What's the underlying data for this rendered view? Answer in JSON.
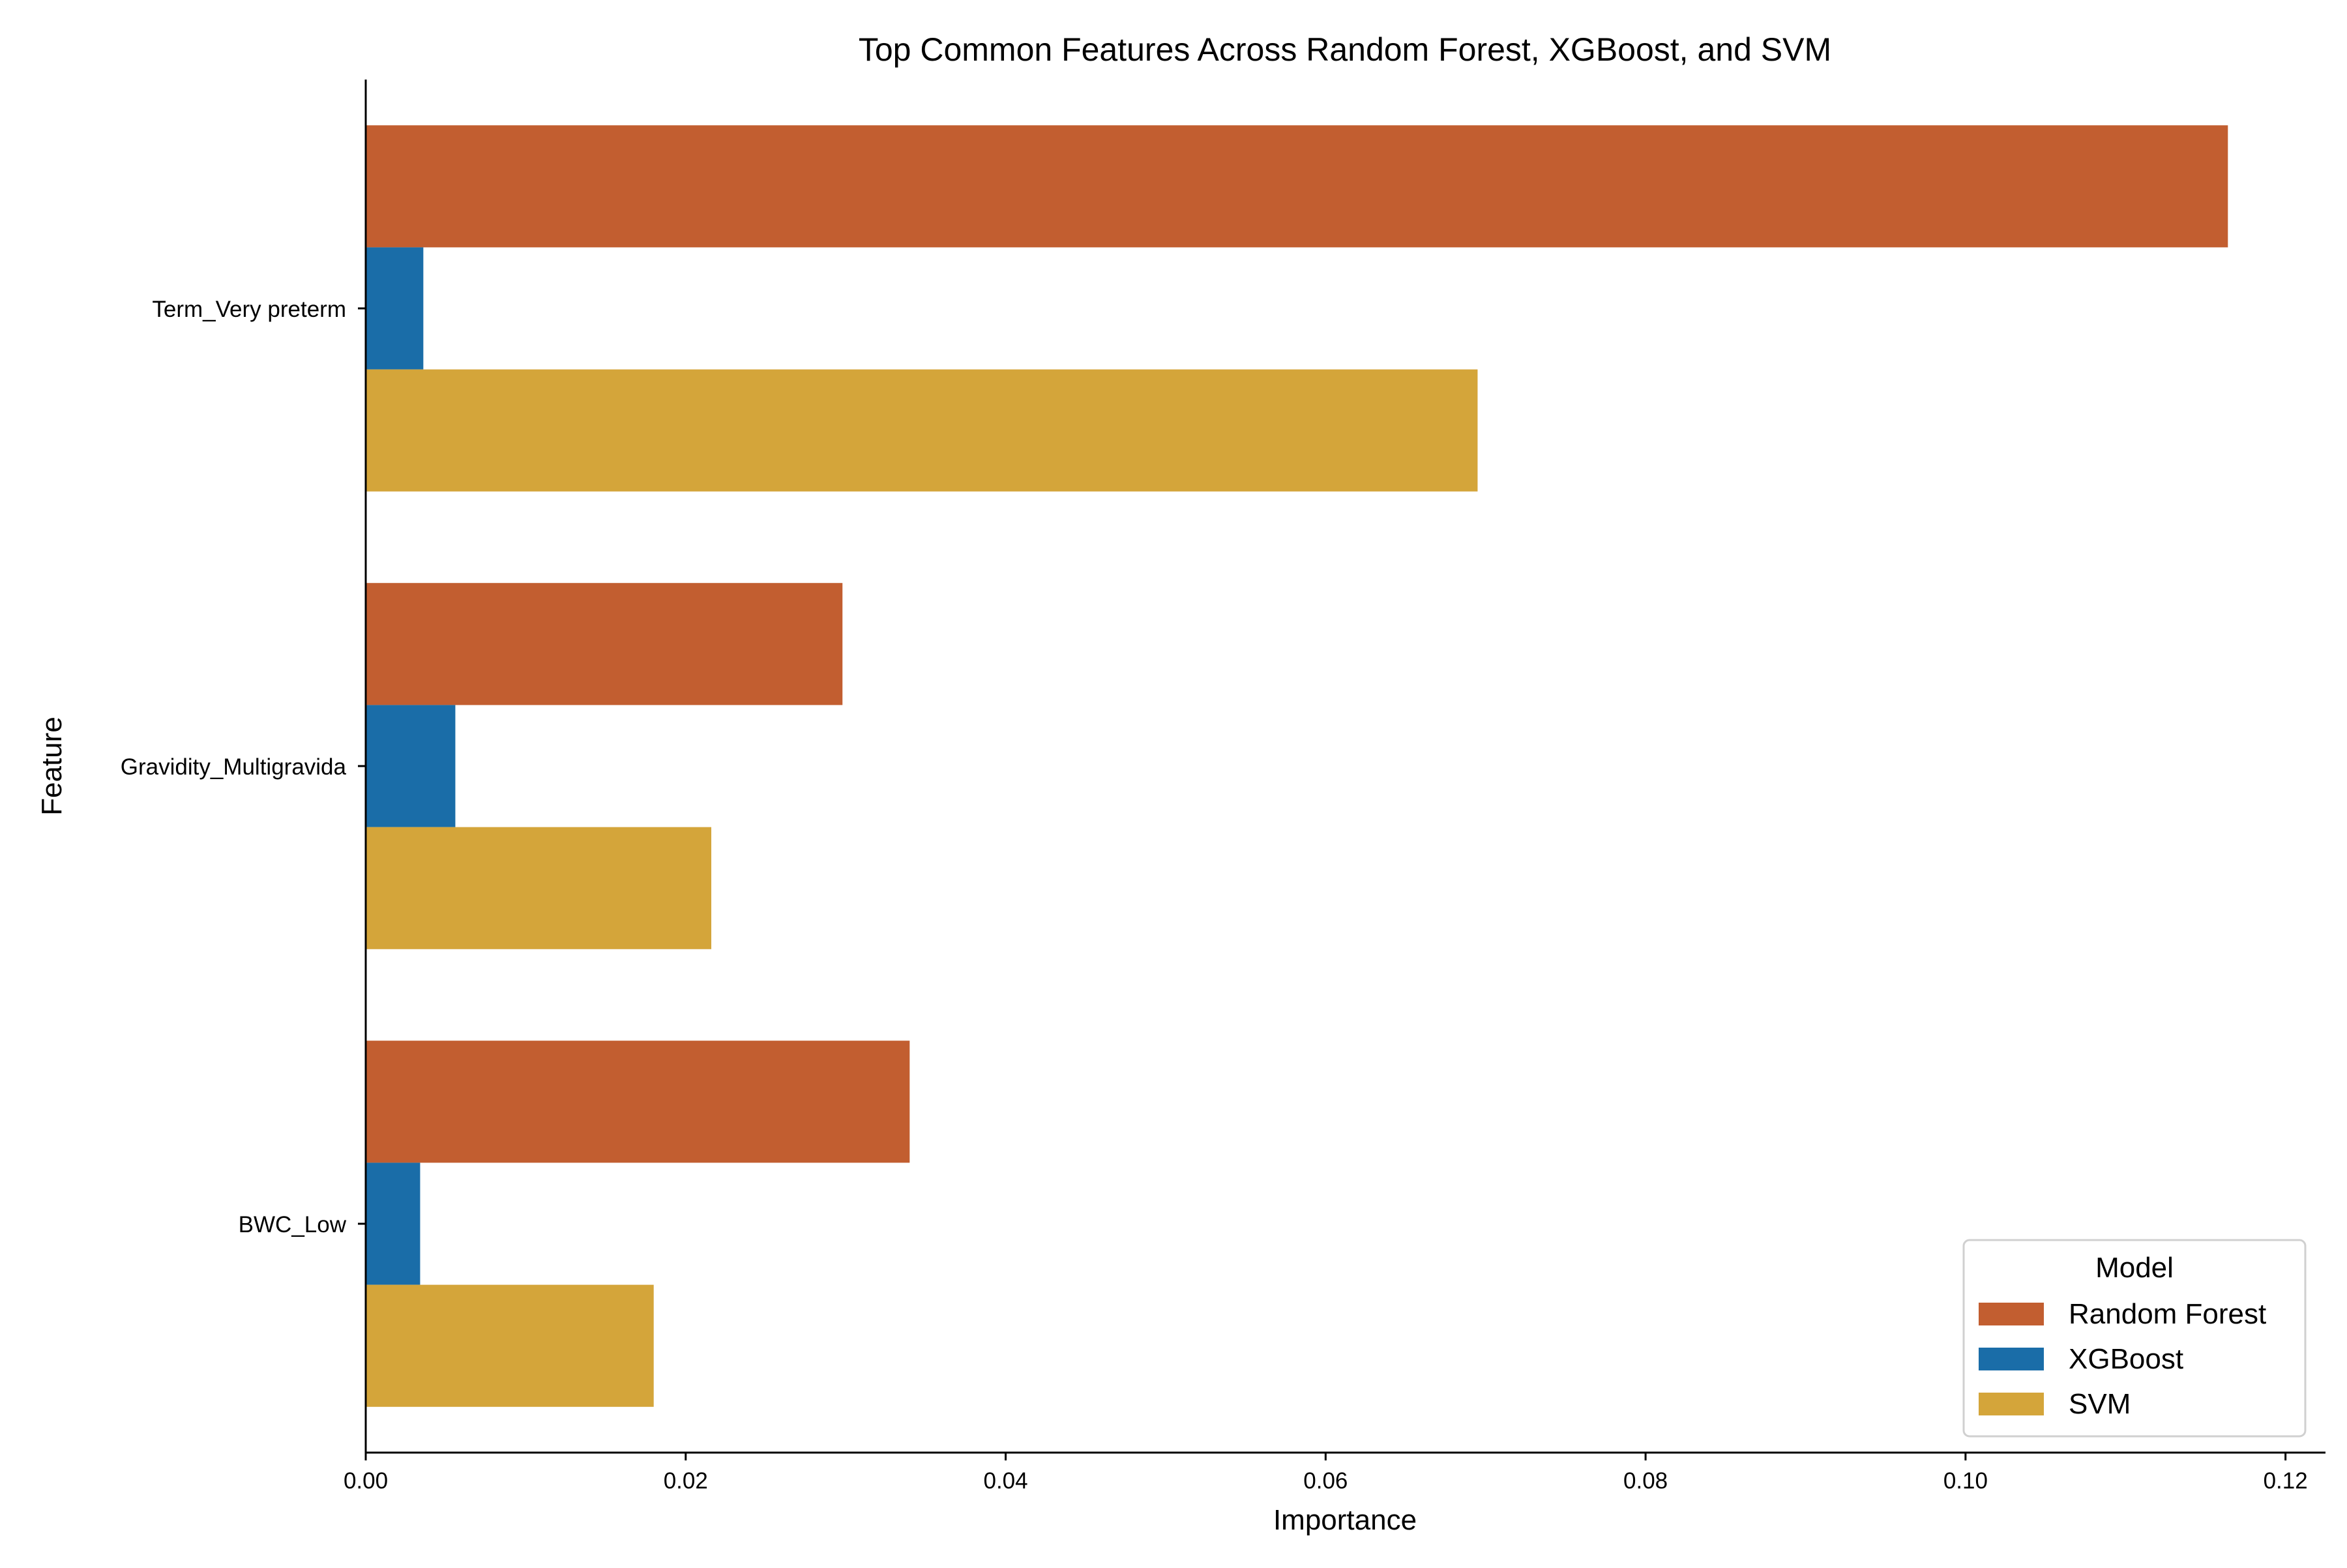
{
  "chart_data": {
    "type": "bar",
    "orientation": "horizontal",
    "title": "Top Common Features Across Random Forest, XGBoost, and SVM",
    "xlabel": "Importance",
    "ylabel": "Feature",
    "categories": [
      "Term_Very preterm",
      "Gravidity_Multigravida",
      "BWC_Low"
    ],
    "series": [
      {
        "name": "Random Forest",
        "color": "#C25E30",
        "values": [
          0.1164,
          0.0298,
          0.034
        ]
      },
      {
        "name": "XGBoost",
        "color": "#1A6DA8",
        "values": [
          0.0036,
          0.0056,
          0.0034
        ]
      },
      {
        "name": "SVM",
        "color": "#D4A53A",
        "values": [
          0.0695,
          0.0216,
          0.018
        ]
      }
    ],
    "xlim": [
      0,
      0.1225
    ],
    "xticks": [
      0.0,
      0.02,
      0.04,
      0.06,
      0.08,
      0.1,
      0.12
    ],
    "xtick_labels": [
      "0.00",
      "0.02",
      "0.04",
      "0.06",
      "0.08",
      "0.10",
      "0.12"
    ],
    "grid": false,
    "legend": {
      "title": "Model",
      "placement": "bottom-right"
    }
  }
}
